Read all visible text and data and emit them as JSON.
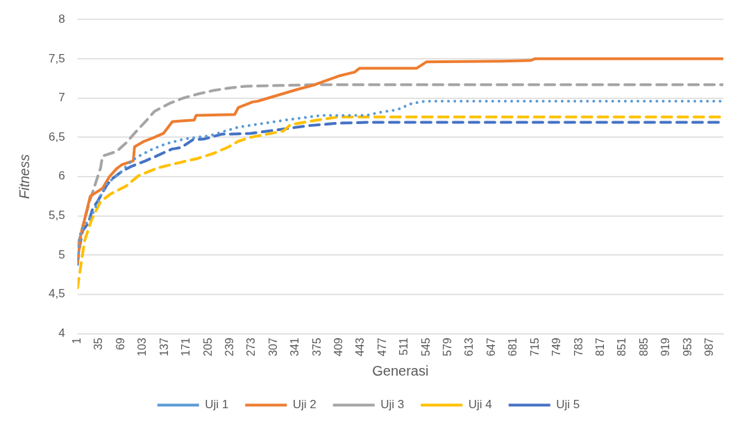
{
  "chart_data": {
    "type": "line",
    "xlabel": "Generasi",
    "ylabel": "Fitness",
    "xlim": [
      1,
      1008
    ],
    "xticks": [
      1,
      35,
      69,
      103,
      137,
      171,
      205,
      239,
      273,
      307,
      341,
      375,
      409,
      443,
      477,
      511,
      545,
      579,
      613,
      647,
      681,
      715,
      749,
      783,
      817,
      851,
      885,
      919,
      953,
      987
    ],
    "ylim": [
      4,
      8
    ],
    "yticks": [
      4,
      {
        "value": 4.5,
        "label": "4,5"
      },
      5,
      {
        "value": 5.5,
        "label": "5,5"
      },
      6,
      {
        "value": 6.5,
        "label": "6,5"
      },
      7,
      {
        "value": 7.5,
        "label": "7,5"
      },
      8
    ],
    "grid": "y",
    "legend": "bottom",
    "marker": "none",
    "series": [
      {
        "name": "Uji 1",
        "color": "#5b9bd5",
        "line_style": "dotted",
        "x": [
          1,
          6,
          23,
          37,
          46,
          53,
          68,
          85,
          101,
          118,
          140,
          168,
          207,
          252,
          326,
          382,
          452,
          474,
          499,
          522,
          543,
          1008
        ],
        "values": [
          4.95,
          5.3,
          5.5,
          5.75,
          5.9,
          5.95,
          6.05,
          6.2,
          6.28,
          6.35,
          6.42,
          6.48,
          6.52,
          6.63,
          6.72,
          6.78,
          6.78,
          6.82,
          6.85,
          6.93,
          6.96,
          6.96
        ]
      },
      {
        "name": "Uji 2",
        "color": "#ed7d31",
        "line_style": "solid",
        "x": [
          1,
          6,
          21,
          40,
          51,
          62,
          70,
          88,
          90,
          105,
          121,
          135,
          149,
          183,
          186,
          246,
          252,
          274,
          282,
          344,
          371,
          408,
          433,
          441,
          530,
          545,
          664,
          708,
          714,
          1008
        ],
        "values": [
          4.9,
          5.25,
          5.75,
          5.85,
          6.0,
          6.1,
          6.15,
          6.2,
          6.38,
          6.45,
          6.5,
          6.55,
          6.7,
          6.72,
          6.78,
          6.79,
          6.88,
          6.95,
          6.96,
          7.11,
          7.17,
          7.28,
          7.33,
          7.38,
          7.38,
          7.46,
          7.47,
          7.48,
          7.5,
          7.5
        ]
      },
      {
        "name": "Uji 3",
        "color": "#a5a5a5",
        "line_style": "dashed",
        "x": [
          1,
          14,
          21,
          29,
          37,
          40,
          62,
          77,
          92,
          107,
          121,
          144,
          166,
          188,
          215,
          240,
          263,
          319,
          371,
          1008
        ],
        "values": [
          5.11,
          5.51,
          5.71,
          5.91,
          6.11,
          6.26,
          6.32,
          6.43,
          6.57,
          6.7,
          6.83,
          6.93,
          7.0,
          7.05,
          7.1,
          7.13,
          7.15,
          7.16,
          7.17,
          7.17
        ]
      },
      {
        "name": "Uji 4",
        "color": "#ffc000",
        "line_style": "dashed",
        "x": [
          1,
          12,
          23,
          37,
          53,
          77,
          96,
          126,
          151,
          177,
          188,
          215,
          237,
          252,
          271,
          322,
          333,
          360,
          408,
          1008
        ],
        "values": [
          4.58,
          5.18,
          5.45,
          5.68,
          5.78,
          5.88,
          6.01,
          6.11,
          6.16,
          6.21,
          6.23,
          6.3,
          6.38,
          6.45,
          6.5,
          6.58,
          6.66,
          6.7,
          6.76,
          6.76
        ]
      },
      {
        "name": "Uji 5",
        "color": "#4472c4",
        "line_style": "dashed",
        "x": [
          1,
          3,
          9,
          18,
          25,
          32,
          46,
          53,
          73,
          85,
          107,
          121,
          148,
          163,
          181,
          199,
          226,
          240,
          271,
          326,
          363,
          408,
          452,
          1008
        ],
        "values": [
          4.88,
          5.05,
          5.31,
          5.41,
          5.6,
          5.68,
          5.88,
          5.96,
          6.08,
          6.13,
          6.2,
          6.25,
          6.35,
          6.37,
          6.47,
          6.48,
          6.54,
          6.54,
          6.55,
          6.61,
          6.65,
          6.68,
          6.69,
          6.69
        ]
      }
    ]
  }
}
